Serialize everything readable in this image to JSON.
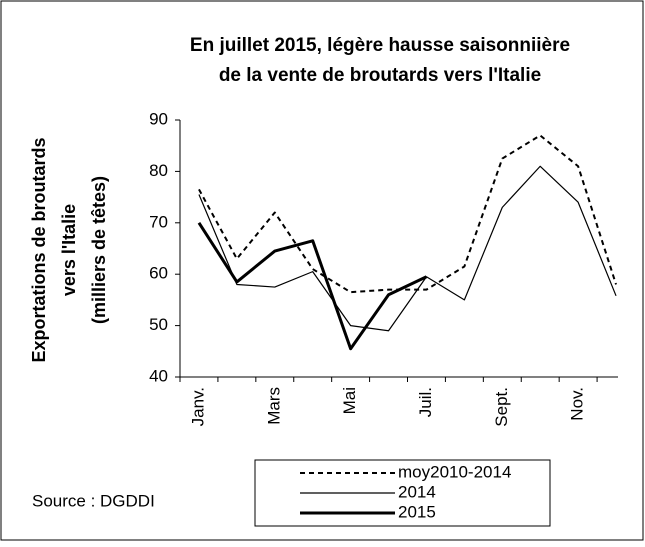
{
  "chart_data": {
    "type": "line",
    "title": [
      "En juillet 2015,  légère hausse saisonniière",
      "de la vente de broutards vers l'Italie"
    ],
    "y_label": [
      "Exportations de broutards",
      "vers l'Italie",
      "(milliers de têtes)"
    ],
    "source": "Source : DGDDI",
    "categories": [
      "Janv.",
      null,
      "Mars",
      null,
      "Mai",
      null,
      "Juil.",
      null,
      "Sept.",
      null,
      "Nov.",
      null
    ],
    "series": [
      {
        "name": "moy2010-2014",
        "color": "#000000",
        "dash": true,
        "width": 2,
        "values": [
          76.5,
          63,
          72,
          61,
          56.5,
          57,
          57,
          61.5,
          82.5,
          87,
          81,
          58
        ]
      },
      {
        "name": "2014",
        "color": "#000000",
        "dash": false,
        "width": 1.2,
        "values": [
          75.5,
          58,
          57.5,
          60.5,
          50,
          49,
          59.5,
          55,
          73,
          81,
          74,
          55.8
        ]
      },
      {
        "name": "2015",
        "color": "#000000",
        "dash": false,
        "width": 3,
        "values": [
          70,
          58.5,
          64.5,
          66.5,
          45.5,
          56,
          59.5,
          null,
          null,
          null,
          null,
          null
        ]
      }
    ],
    "ylim": [
      40,
      90
    ],
    "yticks": [
      40,
      50,
      60,
      70,
      80,
      90
    ]
  }
}
